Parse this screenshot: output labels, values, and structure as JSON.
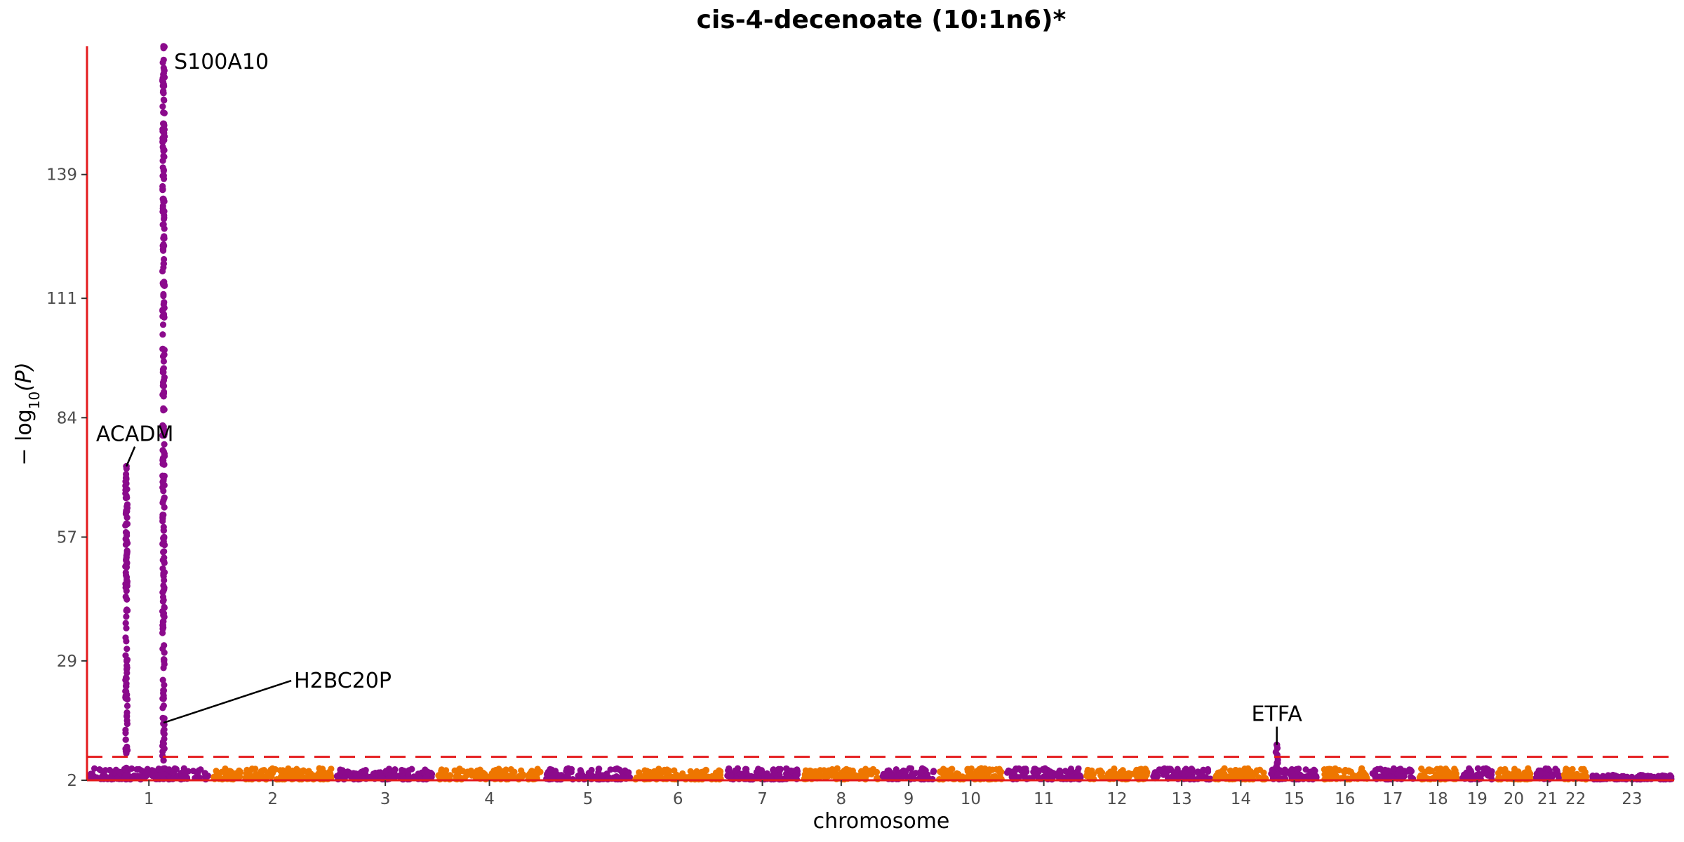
{
  "chart_data": {
    "type": "scatter",
    "title": "cis-4-decenoate (10:1n6)*",
    "xlabel": "chromosome",
    "ylabel": "−log10(P)",
    "ylabel_parts": {
      "prefix": "− log",
      "sub": "10",
      "suffix": "(P)"
    },
    "yticks": [
      2,
      29,
      57,
      84,
      111,
      139
    ],
    "ylim": [
      2,
      168
    ],
    "significance_threshold": 7.3,
    "threshold_style": "red dashed line",
    "grid": false,
    "legend": "none",
    "colors": {
      "odd_chromosomes": "#8B0A8C",
      "even_chromosomes": "#EE7600",
      "axis_line": "#E41A1C",
      "threshold": "#E41A1C",
      "text": "#000000",
      "tick_text": "#4d4d4d"
    },
    "chromosomes": [
      {
        "label": "1",
        "start": 0,
        "end": 11,
        "color": "purple",
        "base": 4.5
      },
      {
        "label": "2",
        "start": 11,
        "end": 22,
        "color": "orange",
        "base": 4.5
      },
      {
        "label": "3",
        "start": 22,
        "end": 31,
        "color": "purple",
        "base": 4.5
      },
      {
        "label": "4",
        "start": 31,
        "end": 40.5,
        "color": "orange",
        "base": 4.5
      },
      {
        "label": "5",
        "start": 40.5,
        "end": 48.5,
        "color": "purple",
        "base": 4.5
      },
      {
        "label": "6",
        "start": 48.5,
        "end": 56.5,
        "color": "orange",
        "base": 4.5
      },
      {
        "label": "7",
        "start": 56.5,
        "end": 63.5,
        "color": "purple",
        "base": 4.5
      },
      {
        "label": "8",
        "start": 63.5,
        "end": 70.5,
        "color": "orange",
        "base": 4.5
      },
      {
        "label": "9",
        "start": 70.5,
        "end": 75.5,
        "color": "purple",
        "base": 4.5
      },
      {
        "label": "10",
        "start": 75.5,
        "end": 81.5,
        "color": "orange",
        "base": 4.5
      },
      {
        "label": "11",
        "start": 81.5,
        "end": 88.5,
        "color": "purple",
        "base": 4.5
      },
      {
        "label": "12",
        "start": 88.5,
        "end": 94.5,
        "color": "orange",
        "base": 4.5
      },
      {
        "label": "13",
        "start": 94.5,
        "end": 100,
        "color": "purple",
        "base": 4.5
      },
      {
        "label": "14",
        "start": 100,
        "end": 105,
        "color": "orange",
        "base": 4.5
      },
      {
        "label": "15",
        "start": 105,
        "end": 109.5,
        "color": "purple",
        "base": 4.5
      },
      {
        "label": "16",
        "start": 109.5,
        "end": 114,
        "color": "orange",
        "base": 4.5
      },
      {
        "label": "17",
        "start": 114,
        "end": 118,
        "color": "purple",
        "base": 4.5
      },
      {
        "label": "18",
        "start": 118,
        "end": 122,
        "color": "orange",
        "base": 4.5
      },
      {
        "label": "19",
        "start": 122,
        "end": 125,
        "color": "purple",
        "base": 4.5
      },
      {
        "label": "20",
        "start": 125,
        "end": 128.5,
        "color": "orange",
        "base": 4.5
      },
      {
        "label": "21",
        "start": 128.5,
        "end": 131,
        "color": "purple",
        "base": 4.5
      },
      {
        "label": "22",
        "start": 131,
        "end": 133.5,
        "color": "orange",
        "base": 4.5
      },
      {
        "label": "23",
        "start": 133.5,
        "end": 141,
        "color": "purple",
        "base": 3.0
      }
    ],
    "peaks": [
      {
        "chromosome": "1",
        "x": 3.5,
        "ymax": 73,
        "color": "purple",
        "label": "ACADM"
      },
      {
        "chromosome": "1",
        "x": 6.8,
        "ymax": 168,
        "color": "purple",
        "label": "S100A10"
      },
      {
        "chromosome": "1",
        "x": 6.8,
        "y": 15,
        "color": "purple",
        "label": "H2BC20P"
      },
      {
        "chromosome": "15",
        "x": 105.7,
        "ymax": 10,
        "color": "purple",
        "label": "ETFA"
      }
    ],
    "annotations": [
      {
        "text": "ACADM",
        "anchor": "point-left-above"
      },
      {
        "text": "S100A10",
        "anchor": "point-right-top"
      },
      {
        "text": "H2BC20P",
        "anchor": "line-right"
      },
      {
        "text": "ETFA",
        "anchor": "point-above"
      }
    ]
  }
}
